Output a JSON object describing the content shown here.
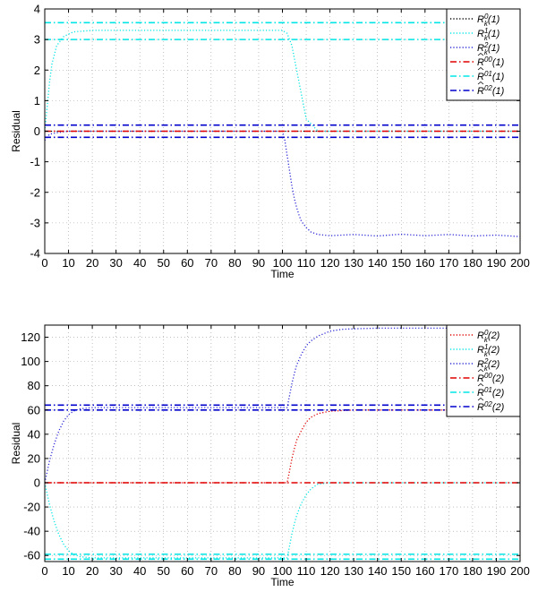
{
  "chart_data": [
    {
      "type": "line",
      "xlabel": "Time",
      "ylabel": "Residual",
      "xlim": [
        0,
        200
      ],
      "ylim": [
        -4,
        4
      ],
      "xticks": [
        "0",
        "10",
        "20",
        "30",
        "40",
        "50",
        "60",
        "70",
        "80",
        "90",
        "100",
        "110",
        "120",
        "130",
        "140",
        "150",
        "160",
        "170",
        "180",
        "190",
        "200"
      ],
      "yticks": [
        "-4",
        "-3",
        "-2",
        "-1",
        "0",
        "1",
        "2",
        "3",
        "4"
      ],
      "grid": true,
      "legend_position": "top-right",
      "series": [
        {
          "name": "R_k^0(1)",
          "color": "#000000",
          "style": "dotted",
          "x": [
            0,
            200
          ],
          "y": [
            0,
            0
          ]
        },
        {
          "name": "R_k^1(1)",
          "color": "#00e5e5",
          "style": "dotted",
          "x": [
            0,
            1,
            2,
            3,
            5,
            8,
            12,
            20,
            50,
            100,
            102,
            104,
            106,
            108,
            110,
            115,
            200
          ],
          "y": [
            0,
            0.8,
            1.6,
            2.2,
            2.8,
            3.1,
            3.25,
            3.3,
            3.3,
            3.3,
            3.2,
            2.8,
            2.0,
            1.2,
            0.4,
            0,
            0
          ]
        },
        {
          "name": "R_k^2(1)",
          "color": "#2a2ad8",
          "style": "dotted",
          "x": [
            0,
            2,
            5,
            10,
            50,
            100,
            101,
            102,
            103,
            104,
            105,
            106,
            107,
            108,
            110,
            112,
            115,
            120,
            130,
            140,
            150,
            160,
            170,
            180,
            190,
            200
          ],
          "y": [
            -0.3,
            -0.1,
            -0.05,
            0,
            0,
            0,
            -0.3,
            -0.8,
            -1.3,
            -1.8,
            -2.2,
            -2.5,
            -2.75,
            -2.95,
            -3.15,
            -3.3,
            -3.38,
            -3.42,
            -3.38,
            -3.43,
            -3.37,
            -3.42,
            -3.38,
            -3.43,
            -3.4,
            -3.45
          ]
        },
        {
          "name": "R̂^00(1)",
          "color": "#e00000",
          "style": "dashdot",
          "x": [
            0,
            200
          ],
          "y": [
            0,
            0
          ]
        },
        {
          "name": "R̂^01(1)",
          "color": "#00e5e5",
          "style": "dashdot",
          "bounds": [
            3.0,
            3.55
          ]
        },
        {
          "name": "R̂^02(1)",
          "color": "#0000cc",
          "style": "dashdot",
          "bounds": [
            -0.2,
            0.2
          ]
        }
      ],
      "legend": [
        {
          "base": "R",
          "hat": false,
          "sup": "0",
          "sub": "k",
          "arg": "(1)"
        },
        {
          "base": "R",
          "hat": false,
          "sup": "1",
          "sub": "k",
          "arg": "(1)"
        },
        {
          "base": "R",
          "hat": false,
          "sup": "2",
          "sub": "k",
          "arg": "(1)"
        },
        {
          "base": "R",
          "hat": true,
          "sup": "00",
          "sub": "",
          "arg": "(1)"
        },
        {
          "base": "R",
          "hat": true,
          "sup": "01",
          "sub": "",
          "arg": "(1)"
        },
        {
          "base": "R",
          "hat": true,
          "sup": "02",
          "sub": "",
          "arg": "(1)"
        }
      ]
    },
    {
      "type": "line",
      "xlabel": "Time",
      "ylabel": "Residual",
      "xlim": [
        0,
        200
      ],
      "ylim": [
        -65,
        130
      ],
      "xticks": [
        "0",
        "10",
        "20",
        "30",
        "40",
        "50",
        "60",
        "70",
        "80",
        "90",
        "100",
        "110",
        "120",
        "130",
        "140",
        "150",
        "160",
        "170",
        "180",
        "190",
        "200"
      ],
      "yticks": [
        "-60",
        "-40",
        "-20",
        "0",
        "20",
        "40",
        "60",
        "80",
        "100",
        "120"
      ],
      "grid": true,
      "legend_position": "top-right",
      "series": [
        {
          "name": "R_k^0(2)",
          "color": "#e00000",
          "style": "dotted",
          "x": [
            0,
            100,
            102,
            103,
            104,
            105,
            106,
            108,
            110,
            112,
            115,
            120,
            130,
            200
          ],
          "y": [
            0,
            0,
            0,
            10,
            20,
            28,
            35,
            43,
            50,
            54,
            57,
            59,
            60,
            60
          ]
        },
        {
          "name": "R_k^1(2)",
          "color": "#00e5e5",
          "style": "dotted",
          "x": [
            0,
            2,
            4,
            6,
            8,
            10,
            12,
            15,
            20,
            50,
            100,
            102,
            103,
            104,
            105,
            106,
            108,
            110,
            112,
            115,
            120,
            200
          ],
          "y": [
            0,
            -18,
            -32,
            -43,
            -51,
            -56,
            -59,
            -61,
            -62,
            -62,
            -62,
            -62,
            -52,
            -42,
            -34,
            -27,
            -17,
            -10,
            -5,
            -1,
            0,
            0
          ]
        },
        {
          "name": "R_k^2(2)",
          "color": "#2a2ad8",
          "style": "dotted",
          "x": [
            0,
            2,
            4,
            6,
            8,
            10,
            12,
            15,
            20,
            50,
            100,
            102,
            103,
            104,
            105,
            106,
            108,
            110,
            112,
            115,
            120,
            125,
            130,
            140,
            200
          ],
          "y": [
            0,
            18,
            32,
            43,
            51,
            56,
            59,
            61,
            62,
            62,
            62,
            62,
            72,
            82,
            90,
            97,
            106,
            113,
            117,
            121,
            125,
            126.5,
            127,
            127.5,
            127.5
          ]
        },
        {
          "name": "R̂^00(2)",
          "color": "#e00000",
          "style": "dashdot",
          "x": [
            0,
            200
          ],
          "y": [
            0,
            0
          ]
        },
        {
          "name": "R̂^01(2)",
          "color": "#00e5e5",
          "style": "dashdot",
          "bounds": [
            -59,
            -63
          ]
        },
        {
          "name": "R̂^02(2)",
          "color": "#0000cc",
          "style": "dashdot",
          "bounds": [
            60,
            64
          ]
        }
      ],
      "legend": [
        {
          "base": "R",
          "hat": false,
          "sup": "0",
          "sub": "k",
          "arg": "(2)"
        },
        {
          "base": "R",
          "hat": false,
          "sup": "1",
          "sub": "k",
          "arg": "(2)"
        },
        {
          "base": "R",
          "hat": false,
          "sup": "2",
          "sub": "k",
          "arg": "(2)"
        },
        {
          "base": "R",
          "hat": true,
          "sup": "00",
          "sub": "",
          "arg": "(2)"
        },
        {
          "base": "R",
          "hat": true,
          "sup": "01",
          "sub": "",
          "arg": "(2)"
        },
        {
          "base": "R",
          "hat": true,
          "sup": "02",
          "sub": "",
          "arg": "(2)"
        }
      ]
    }
  ]
}
